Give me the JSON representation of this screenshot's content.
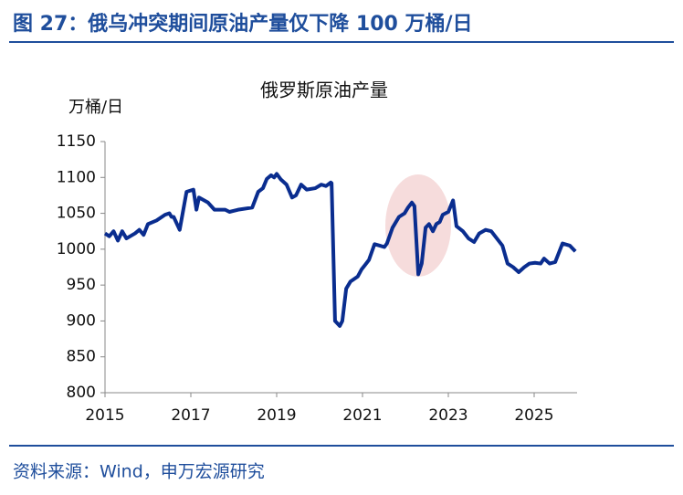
{
  "header": {
    "title": "图 27：俄乌冲突期间原油产量仅下降 100 万桶/日"
  },
  "chart_data": {
    "type": "line",
    "title": "俄罗斯原油产量",
    "y_label": "万桶/日",
    "x": [
      2015.0,
      2015.1,
      2015.2,
      2015.3,
      2015.4,
      2015.5,
      2015.7,
      2015.8,
      2015.9,
      2016.0,
      2016.2,
      2016.4,
      2016.5,
      2016.55,
      2016.6,
      2016.74,
      2016.9,
      2017.06,
      2017.13,
      2017.19,
      2017.4,
      2017.55,
      2017.8,
      2017.9,
      2018.1,
      2018.43,
      2018.57,
      2018.68,
      2018.77,
      2018.87,
      2018.94,
      2019.0,
      2019.1,
      2019.23,
      2019.36,
      2019.45,
      2019.57,
      2019.7,
      2019.9,
      2020.04,
      2020.15,
      2020.26,
      2020.28,
      2020.36,
      2020.47,
      2020.53,
      2020.62,
      2020.72,
      2020.89,
      2020.98,
      2021.06,
      2021.15,
      2021.28,
      2021.4,
      2021.51,
      2021.57,
      2021.7,
      2021.85,
      2021.98,
      2022.06,
      2022.15,
      2022.21,
      2022.3,
      2022.38,
      2022.47,
      2022.55,
      2022.64,
      2022.72,
      2022.8,
      2022.87,
      2023.0,
      2023.11,
      2023.19,
      2023.34,
      2023.47,
      2023.6,
      2023.72,
      2023.87,
      2024.0,
      2024.13,
      2024.26,
      2024.38,
      2024.51,
      2024.64,
      2024.77,
      2024.89,
      2025.02,
      2025.15,
      2025.23,
      2025.36,
      2025.49,
      2025.66,
      2025.83,
      2025.96
    ],
    "series": [
      {
        "name": "俄罗斯原油产量",
        "color": "#0a2d8f",
        "values": [
          1022,
          1018,
          1025,
          1012,
          1025,
          1015,
          1022,
          1027,
          1020,
          1035,
          1040,
          1048,
          1050,
          1045,
          1045,
          1027,
          1080,
          1083,
          1055,
          1072,
          1065,
          1055,
          1055,
          1052,
          1055,
          1058,
          1080,
          1085,
          1098,
          1103,
          1100,
          1105,
          1097,
          1090,
          1072,
          1075,
          1090,
          1083,
          1085,
          1090,
          1088,
          1093,
          1092,
          900,
          893,
          900,
          945,
          955,
          962,
          972,
          978,
          985,
          1007,
          1005,
          1003,
          1008,
          1030,
          1045,
          1050,
          1058,
          1065,
          1060,
          965,
          980,
          1030,
          1035,
          1025,
          1035,
          1038,
          1048,
          1052,
          1068,
          1032,
          1025,
          1015,
          1010,
          1022,
          1027,
          1025,
          1015,
          1005,
          980,
          975,
          968,
          975,
          980,
          981,
          980,
          987,
          980,
          982,
          1008,
          1005,
          997
        ]
      }
    ],
    "xlim": [
      2015,
      2026
    ],
    "xticks": [
      2015,
      2017,
      2019,
      2021,
      2023,
      2025
    ],
    "ylim": [
      800,
      1150
    ],
    "yticks": [
      800,
      850,
      900,
      950,
      1000,
      1050,
      1100,
      1150
    ],
    "grid": false
  },
  "footer": {
    "source": "资料来源：Wind，申万宏源研究"
  }
}
